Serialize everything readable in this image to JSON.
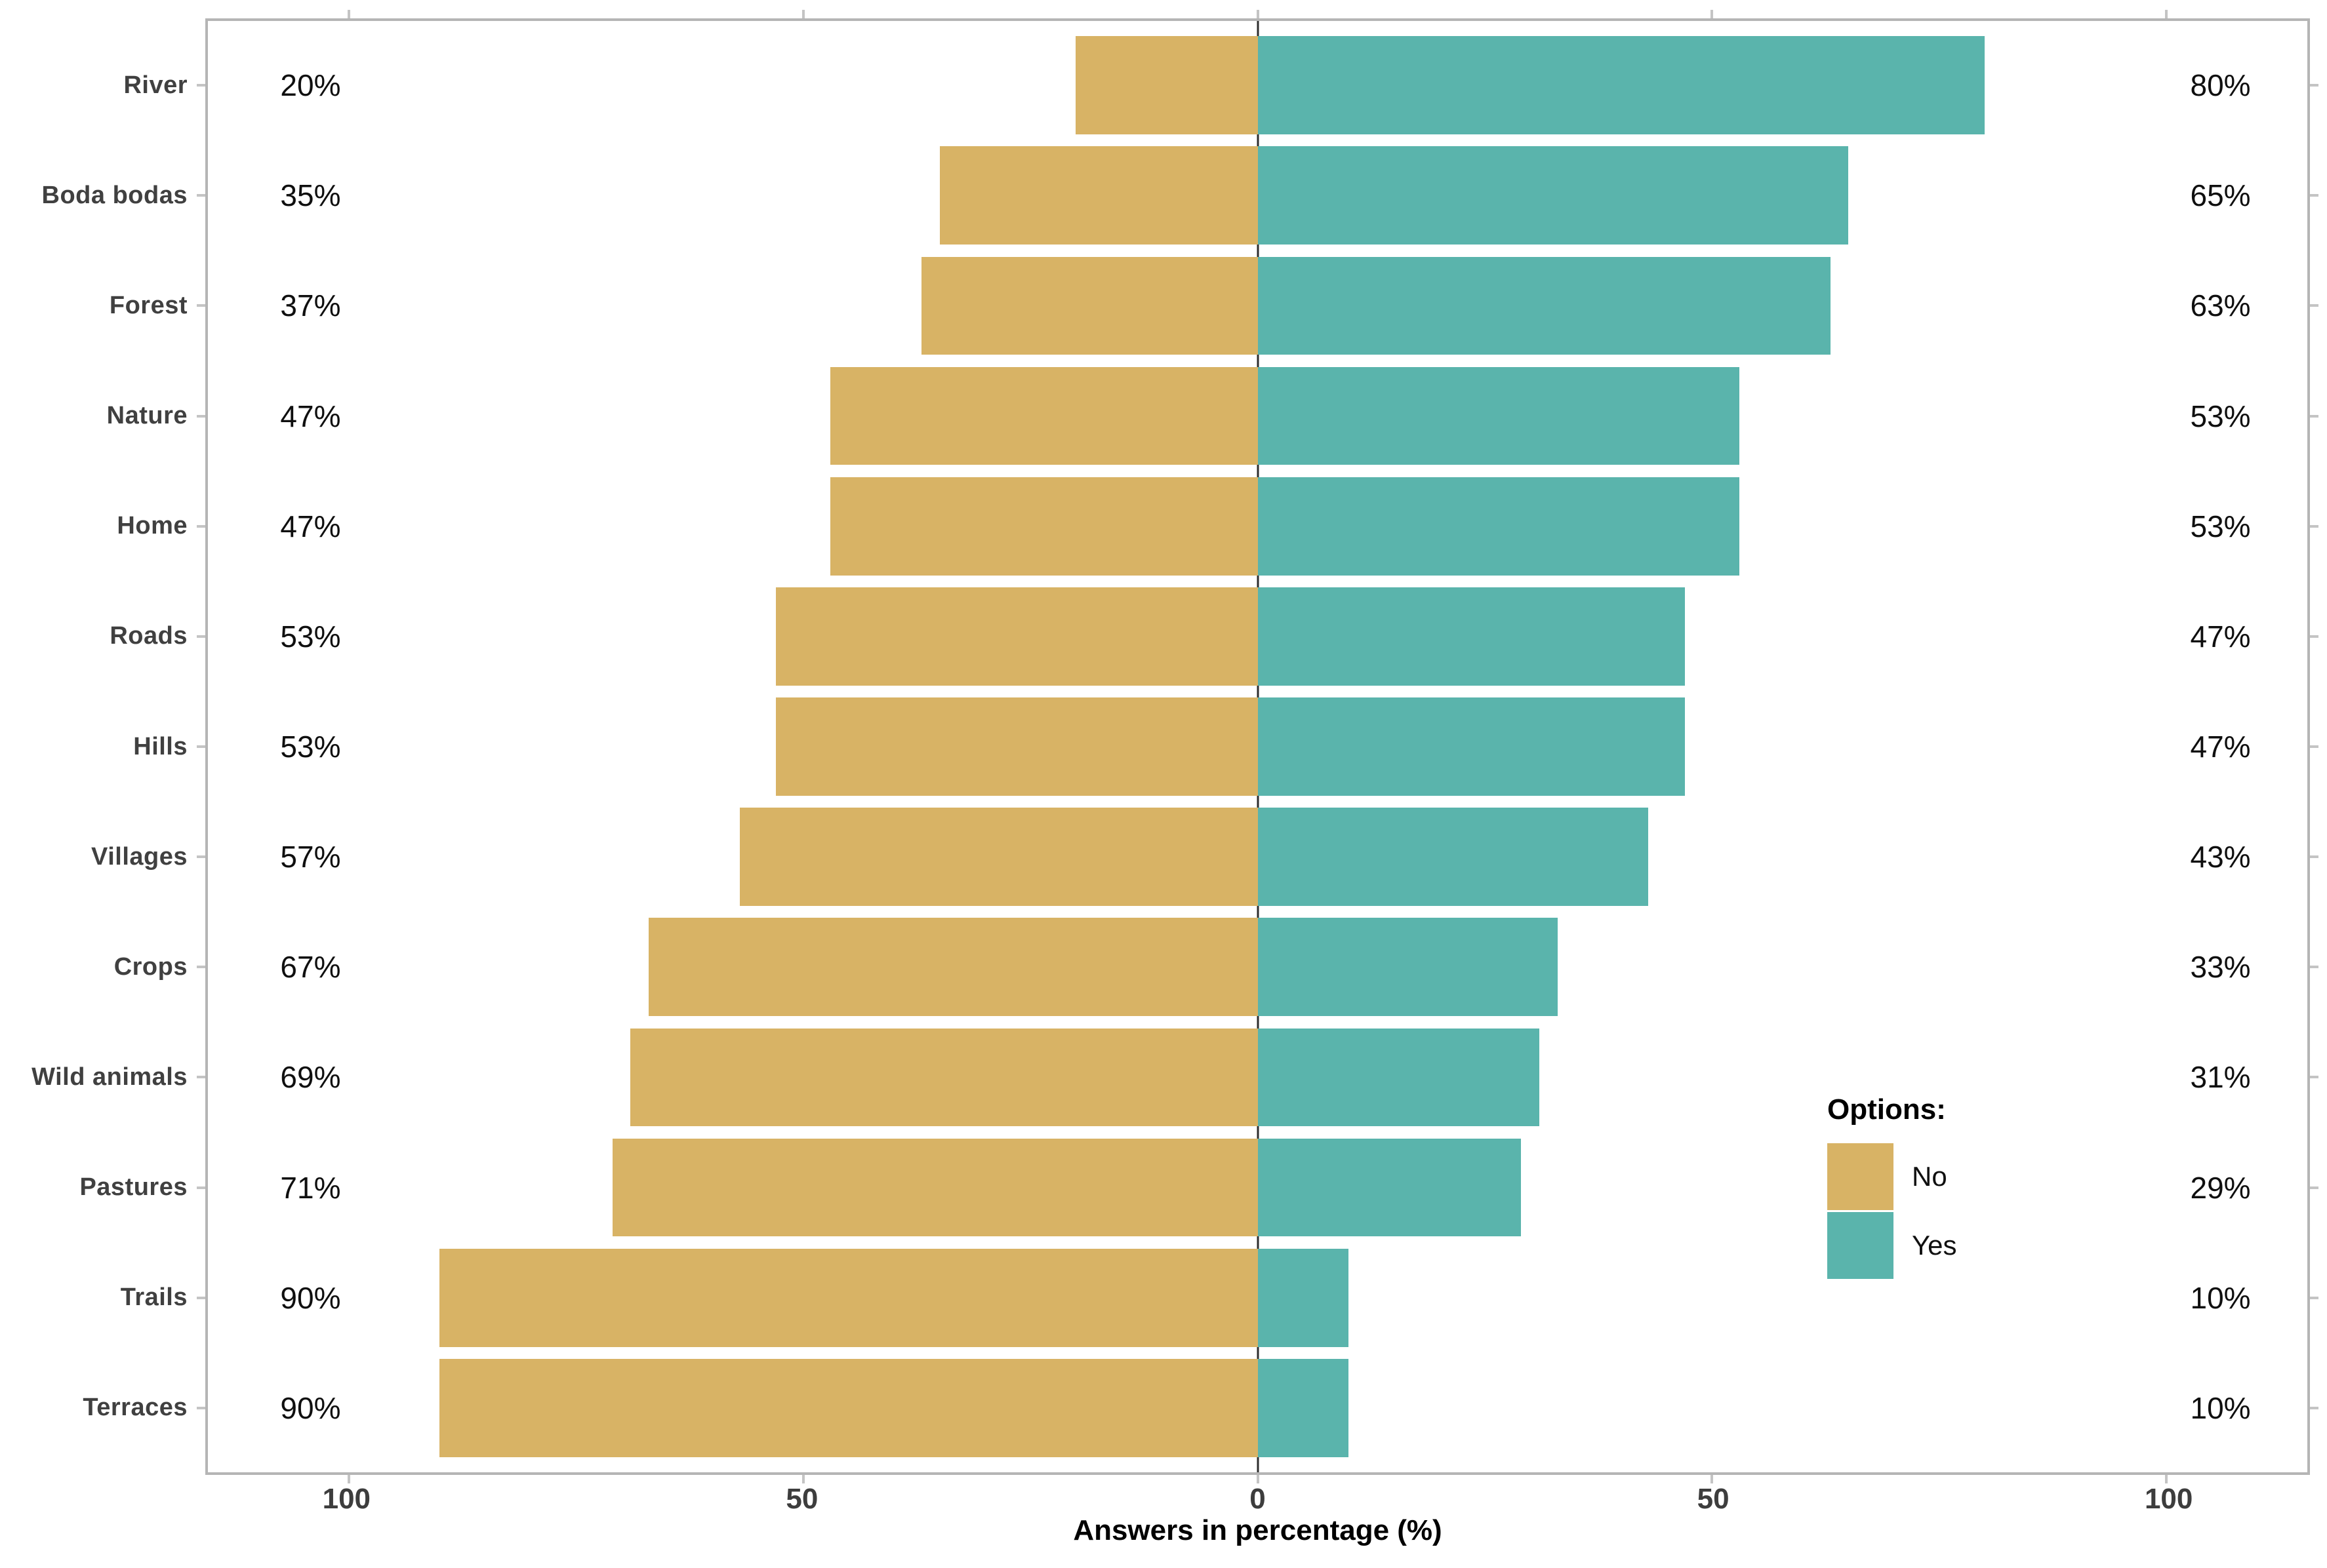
{
  "chart_data": {
    "type": "bar",
    "variant": "diverging-horizontal",
    "title": "",
    "xlabel": "Answers in percentage (%)",
    "ylabel": "",
    "categories": [
      "River",
      "Boda bodas",
      "Forest",
      "Nature",
      "Home",
      "Roads",
      "Hills",
      "Villages",
      "Crops",
      "Wild animals",
      "Pastures",
      "Trails",
      "Terraces"
    ],
    "series": [
      {
        "name": "No",
        "side": "left",
        "color": "#d8b365",
        "values": [
          20,
          35,
          37,
          47,
          47,
          53,
          53,
          57,
          67,
          69,
          71,
          90,
          90
        ]
      },
      {
        "name": "Yes",
        "side": "right",
        "color": "#5ab4ac",
        "values": [
          80,
          65,
          63,
          53,
          53,
          47,
          47,
          43,
          33,
          31,
          29,
          10,
          10
        ]
      }
    ],
    "value_labels": {
      "no": [
        "20%",
        "35%",
        "37%",
        "47%",
        "47%",
        "53%",
        "53%",
        "57%",
        "67%",
        "69%",
        "71%",
        "90%",
        "90%"
      ],
      "yes": [
        "80%",
        "65%",
        "63%",
        "53%",
        "53%",
        "47%",
        "47%",
        "43%",
        "33%",
        "31%",
        "29%",
        "10%",
        "10%"
      ]
    },
    "x_ticks": [
      {
        "label": "100",
        "value": -100
      },
      {
        "label": "50",
        "value": -50
      },
      {
        "label": "0",
        "value": 0
      },
      {
        "label": "50",
        "value": 50
      },
      {
        "label": "100",
        "value": 100
      }
    ],
    "xlim": [
      -115.5,
      115.5
    ],
    "grid": "off",
    "legend": {
      "title": "Options:",
      "position": "inside-right",
      "entries": [
        {
          "label": "No",
          "color": "#d8b365"
        },
        {
          "label": "Yes",
          "color": "#5ab4ac"
        }
      ]
    },
    "style_colors": {
      "panel_border": "#b5b5b5",
      "tick_mark": "#c4c4c4",
      "zero_line": "#2e2e2e",
      "axis_text": "#404040",
      "value_text": "#0f0f0f"
    }
  }
}
